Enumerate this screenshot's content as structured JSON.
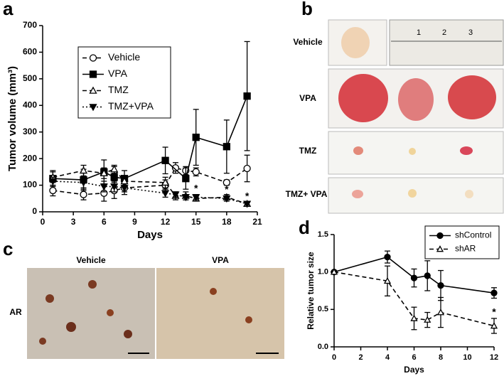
{
  "panel_labels": [
    "a",
    "b",
    "c",
    "d"
  ],
  "photo_b": {
    "rows": [
      "Vehicle",
      "VPA",
      "TMZ",
      "TMZ+ VPA"
    ],
    "ruler": [
      "1",
      "2",
      "3"
    ]
  },
  "photo_c": {
    "columns": [
      "Vehicle",
      "VPA"
    ],
    "row": "AR"
  },
  "chart_data": [
    {
      "type": "line",
      "xlabel": "Days",
      "ylabel": "Tumor volume (mm³)",
      "xlim": [
        0,
        21
      ],
      "xticks": [
        0,
        3,
        6,
        9,
        12,
        15,
        18,
        21
      ],
      "ylim": [
        0,
        700
      ],
      "yticks": [
        0,
        100,
        200,
        300,
        400,
        500,
        600,
        700
      ],
      "legend": "upper left",
      "series": [
        {
          "name": "Vehicle",
          "color": "#000000",
          "dash": "dashed",
          "marker": "circle-open",
          "x": [
            1,
            4,
            6,
            7,
            8,
            12,
            13,
            14,
            15,
            18,
            20
          ],
          "values": [
            80,
            65,
            70,
            80,
            90,
            100,
            165,
            155,
            150,
            110,
            163
          ],
          "errors": [
            20,
            20,
            30,
            30,
            25,
            20,
            20,
            15,
            15,
            10,
            50
          ]
        },
        {
          "name": "VPA",
          "color": "#000000",
          "dash": "solid",
          "marker": "square",
          "x": [
            1,
            4,
            6,
            7,
            8,
            12,
            14,
            15,
            18,
            20
          ],
          "values": [
            125,
            120,
            150,
            130,
            125,
            193,
            125,
            280,
            245,
            435
          ],
          "errors": [
            30,
            40,
            45,
            40,
            30,
            50,
            40,
            105,
            100,
            205
          ]
        },
        {
          "name": "TMZ",
          "color": "#000000",
          "dash": "dashed",
          "marker": "triangle-open",
          "x": [
            1,
            4,
            6,
            7,
            8,
            12,
            13,
            14,
            15,
            18,
            20
          ],
          "values": [
            130,
            155,
            145,
            160,
            115,
            110,
            60,
            60,
            50,
            55,
            30
          ],
          "errors": [
            20,
            20,
            20,
            15,
            20,
            20,
            15,
            15,
            10,
            10,
            5
          ]
        },
        {
          "name": "TMZ+VPA",
          "color": "#000000",
          "dash": "dotted",
          "marker": "triangle-down",
          "x": [
            1,
            4,
            6,
            7,
            8,
            12,
            13,
            14,
            15,
            18,
            20
          ],
          "values": [
            115,
            110,
            95,
            95,
            90,
            70,
            65,
            55,
            55,
            50,
            30
          ],
          "errors": [
            15,
            20,
            20,
            20,
            15,
            15,
            10,
            10,
            10,
            10,
            5
          ]
        }
      ],
      "annotations": [
        {
          "text": "*",
          "x": 15
        },
        {
          "text": "*",
          "x": 18
        },
        {
          "text": "*",
          "x": 20
        }
      ]
    },
    {
      "type": "line",
      "xlabel": "Days",
      "ylabel": "Relative tumor size",
      "xlim": [
        0,
        12
      ],
      "xticks": [
        0,
        2,
        4,
        6,
        8,
        10,
        12
      ],
      "ylim": [
        0,
        1.5
      ],
      "yticks": [
        {
          "value": 0,
          "label": "0.0"
        },
        0.5,
        {
          "value": 1,
          "label": "1.0"
        },
        1.5
      ],
      "legend": "upper right",
      "series": [
        {
          "name": "shControl",
          "color": "#000000",
          "dash": "solid",
          "marker": "circle",
          "x": [
            0,
            4,
            6,
            7,
            8,
            12
          ],
          "values": [
            1.0,
            1.2,
            0.92,
            0.95,
            0.82,
            0.72
          ],
          "errors": [
            0,
            0.08,
            0.12,
            0.2,
            0.2,
            0.07
          ]
        },
        {
          "name": "shAR",
          "color": "#000000",
          "dash": "dashed",
          "marker": "triangle-open",
          "x": [
            0,
            4,
            6,
            7,
            8,
            12
          ],
          "values": [
            1.0,
            0.88,
            0.38,
            0.36,
            0.46,
            0.28
          ],
          "errors": [
            0,
            0.2,
            0.15,
            0.1,
            0.2,
            0.1
          ]
        }
      ],
      "annotations": [
        {
          "text": "*",
          "x": 12
        }
      ]
    }
  ]
}
